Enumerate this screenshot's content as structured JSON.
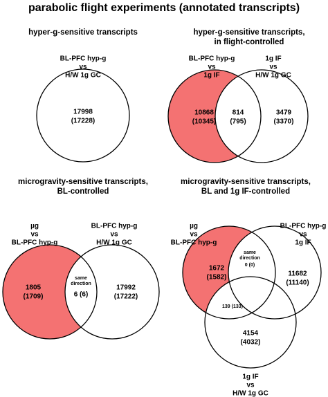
{
  "title": "parabolic flight experiments (annotated transcripts)",
  "panels": [
    {
      "title": [
        "hyper-g-sensitive transcripts"
      ],
      "sets": [
        {
          "label": [
            "BL-PFC hyp-g",
            "vs",
            "H/W 1g GC"
          ]
        }
      ],
      "regions": [
        {
          "lines": [
            "17998",
            "(17228)"
          ]
        }
      ]
    },
    {
      "title": [
        "hyper-g-sensitive transcripts,",
        "in flight-controlled"
      ],
      "sets": [
        {
          "label": [
            "BL-PFC hyp-g",
            "vs",
            "1g IF"
          ]
        },
        {
          "label": [
            "1g IF",
            "vs",
            "H/W 1g GC"
          ]
        }
      ],
      "regions": [
        {
          "lines": [
            "10868",
            "(10345)"
          ]
        },
        {
          "lines": [
            "814",
            "(795)"
          ]
        },
        {
          "lines": [
            "3479",
            "(3370)"
          ]
        }
      ]
    },
    {
      "title": [
        "microgravity-sensitive transcripts,",
        "BL-controlled"
      ],
      "sets": [
        {
          "label": [
            "µg",
            "vs",
            "BL-PFC hyp-g"
          ]
        },
        {
          "label": [
            "BL-PFC hyp-g",
            "vs",
            "H/W 1g GC"
          ]
        }
      ],
      "regions": [
        {
          "lines": [
            "1805",
            "(1709)"
          ]
        },
        {
          "lines": [
            "same",
            "direction",
            "6 (6)"
          ]
        },
        {
          "lines": [
            "17992",
            "(17222)"
          ]
        }
      ]
    },
    {
      "title": [
        "microgravity-sensitive transcripts,",
        "BL and 1g IF-controlled"
      ],
      "sets": [
        {
          "label": [
            "µg",
            "vs",
            "BL-PFC hyp-g"
          ]
        },
        {
          "label": [
            "BL-PFC hyp-g",
            "vs",
            "1g IF"
          ]
        },
        {
          "label": [
            "1g IF",
            "vs",
            "H/W 1g GC"
          ]
        }
      ],
      "regions": [
        {
          "lines": [
            "1672",
            "(1582)"
          ]
        },
        {
          "lines": [
            "same",
            "direction",
            "0 (0)"
          ]
        },
        {
          "lines": [
            "11682",
            "(11140)"
          ]
        },
        {
          "lines": [
            "139 (133)"
          ]
        },
        {
          "lines": [
            "4154",
            "(4032)"
          ]
        }
      ]
    }
  ]
}
